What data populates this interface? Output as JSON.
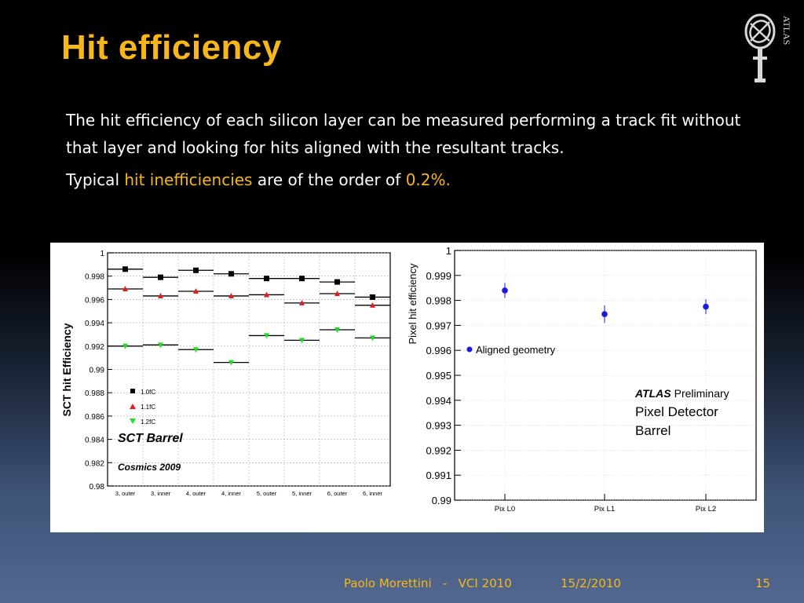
{
  "slide": {
    "title": "Hit efficiency",
    "logo_text": "ATLAS",
    "paragraph1": "The hit efficiency of each silicon layer can be measured performing a track fit without that layer and looking for hits aligned with the resultant tracks.",
    "paragraph2": {
      "pre": "Typical ",
      "highlight": "hit inefficiencies",
      "mid": " are of the order of ",
      "value": "0.2%."
    },
    "footer": {
      "author_event": "Paolo Morettini   -   VCI 2010",
      "date": "15/2/2010",
      "page": "15"
    },
    "colors": {
      "title": "#f7b718",
      "text": "#ffffff",
      "highlight": "#f7b718"
    }
  },
  "chart_data": [
    {
      "type": "scatter",
      "ylabel": "SCT hit Efficiency",
      "ylim": [
        0.98,
        1.0
      ],
      "yticks": [
        "0.98",
        "0.982",
        "0.984",
        "0.986",
        "0.988",
        "0.99",
        "0.992",
        "0.994",
        "0.996",
        "0.998",
        "1"
      ],
      "categories": [
        "3, outer",
        "3, inner",
        "4, outer",
        "4, inner",
        "5, outer",
        "5, inner",
        "6, outer",
        "6, inner"
      ],
      "series": [
        {
          "name": "1.0fC",
          "color": "#000000",
          "marker": "square",
          "values": [
            0.9986,
            0.9979,
            0.9985,
            0.9982,
            0.9978,
            0.9978,
            0.9975,
            0.9962
          ]
        },
        {
          "name": "1.1fC",
          "color": "#e02020",
          "marker": "triangle-up",
          "values": [
            0.9969,
            0.9963,
            0.9967,
            0.9963,
            0.9964,
            0.9957,
            0.9965,
            0.9955
          ]
        },
        {
          "name": "1.2fC",
          "color": "#22dd22",
          "marker": "triangle-down",
          "values": [
            0.992,
            0.9921,
            0.9917,
            0.9906,
            0.9929,
            0.9925,
            0.9934,
            0.9927
          ]
        }
      ],
      "annotations": [
        "SCT Barrel",
        "Cosmics 2009"
      ]
    },
    {
      "type": "scatter",
      "ylabel": "Pixel hit efficiency",
      "ylim": [
        0.99,
        1.0
      ],
      "yticks": [
        "0.99",
        "0.991",
        "0.992",
        "0.993",
        "0.994",
        "0.995",
        "0.996",
        "0.997",
        "0.998",
        "0.999",
        "1"
      ],
      "categories": [
        "Pix L0",
        "Pix L1",
        "Pix L2"
      ],
      "series": [
        {
          "name": "Aligned geometry",
          "color": "#1a1ae0",
          "marker": "circle",
          "values": [
            0.9984,
            0.99745,
            0.99775
          ],
          "errors": [
            0.0003,
            0.00035,
            0.0003
          ]
        }
      ],
      "annotations": {
        "atlas": "ATLAS",
        "preliminary": "Preliminary",
        "line1": "Pixel Detector",
        "line2": "Barrel"
      }
    }
  ]
}
